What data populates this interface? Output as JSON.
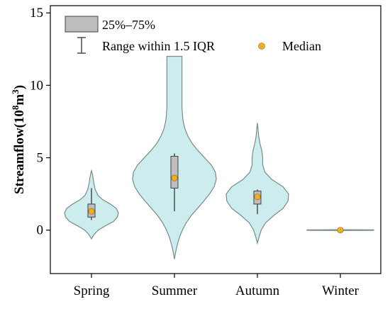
{
  "chart_data": {
    "type": "violin",
    "categories": [
      "Spring",
      "Summer",
      "Autumn",
      "Winter"
    ],
    "ylabel_main": "Streamflow(10",
    "ylabel_sup1": "8",
    "ylabel_mid": "m",
    "ylabel_sup2": "3",
    "ylabel_end": ")",
    "ylim": [
      -3,
      15.5
    ],
    "yticks": [
      0,
      5,
      10,
      15
    ],
    "grid": false,
    "legend_position": "top-left",
    "legend": {
      "box_label": "25%–75%",
      "whisker_label": "Range within 1.5 IQR",
      "median_label": "Median"
    },
    "violin_color": "#cdeced",
    "violin_edge_color": "#7a8a8a",
    "box_color": "#bdbdbd",
    "median_color": "#f0ad1e",
    "series": [
      {
        "category": "Spring",
        "box_q1": 0.9,
        "box_q3": 1.8,
        "median": 1.3,
        "whisker_low": 0.7,
        "whisker_high": 2.9,
        "violin_profile": [
          [
            -0.6,
            0.0
          ],
          [
            -0.3,
            0.1
          ],
          [
            0.0,
            0.25
          ],
          [
            0.3,
            0.52
          ],
          [
            0.6,
            0.82
          ],
          [
            0.9,
            0.96
          ],
          [
            1.2,
            1.0
          ],
          [
            1.5,
            0.92
          ],
          [
            1.8,
            0.7
          ],
          [
            2.1,
            0.42
          ],
          [
            2.4,
            0.24
          ],
          [
            2.8,
            0.14
          ],
          [
            3.2,
            0.09
          ],
          [
            3.6,
            0.06
          ],
          [
            3.9,
            0.03
          ],
          [
            4.1,
            0.0
          ]
        ]
      },
      {
        "category": "Summer",
        "box_q1": 2.9,
        "box_q3": 5.1,
        "median": 3.6,
        "whisker_low": 1.3,
        "whisker_high": 5.3,
        "violin_profile": [
          [
            -2.0,
            0.0
          ],
          [
            -1.5,
            0.03
          ],
          [
            -1.0,
            0.07
          ],
          [
            -0.5,
            0.12
          ],
          [
            0.0,
            0.19
          ],
          [
            0.5,
            0.28
          ],
          [
            1.0,
            0.4
          ],
          [
            1.5,
            0.55
          ],
          [
            2.0,
            0.7
          ],
          [
            2.5,
            0.84
          ],
          [
            3.0,
            0.95
          ],
          [
            3.5,
            1.0
          ],
          [
            4.0,
            0.98
          ],
          [
            4.5,
            0.88
          ],
          [
            5.0,
            0.72
          ],
          [
            5.5,
            0.56
          ],
          [
            6.0,
            0.42
          ],
          [
            6.5,
            0.32
          ],
          [
            7.0,
            0.25
          ],
          [
            7.5,
            0.21
          ],
          [
            8.0,
            0.19
          ],
          [
            8.5,
            0.18
          ],
          [
            9.0,
            0.18
          ],
          [
            9.5,
            0.18
          ],
          [
            10.0,
            0.18
          ],
          [
            10.5,
            0.18
          ],
          [
            11.0,
            0.18
          ],
          [
            11.5,
            0.18
          ],
          [
            12.0,
            0.18
          ]
        ]
      },
      {
        "category": "Autumn",
        "box_q1": 1.8,
        "box_q3": 2.7,
        "median": 2.3,
        "whisker_low": 1.1,
        "whisker_high": 2.8,
        "violin_profile": [
          [
            -0.9,
            0.0
          ],
          [
            -0.5,
            0.05
          ],
          [
            0.0,
            0.12
          ],
          [
            0.5,
            0.26
          ],
          [
            1.0,
            0.52
          ],
          [
            1.5,
            0.82
          ],
          [
            2.0,
            0.98
          ],
          [
            2.5,
            1.0
          ],
          [
            3.0,
            0.82
          ],
          [
            3.5,
            0.46
          ],
          [
            4.0,
            0.24
          ],
          [
            4.5,
            0.17
          ],
          [
            5.0,
            0.17
          ],
          [
            5.5,
            0.14
          ],
          [
            6.0,
            0.08
          ],
          [
            6.5,
            0.04
          ],
          [
            7.0,
            0.02
          ],
          [
            7.4,
            0.0
          ]
        ]
      },
      {
        "category": "Winter",
        "box_q1": 0.0,
        "box_q3": 0.0,
        "median": 0.0,
        "whisker_low": 0.0,
        "whisker_high": 0.0,
        "violin_profile": [
          [
            -0.03,
            0.0
          ],
          [
            -0.015,
            1.0
          ],
          [
            0.015,
            1.0
          ],
          [
            0.03,
            0.0
          ]
        ]
      }
    ]
  }
}
